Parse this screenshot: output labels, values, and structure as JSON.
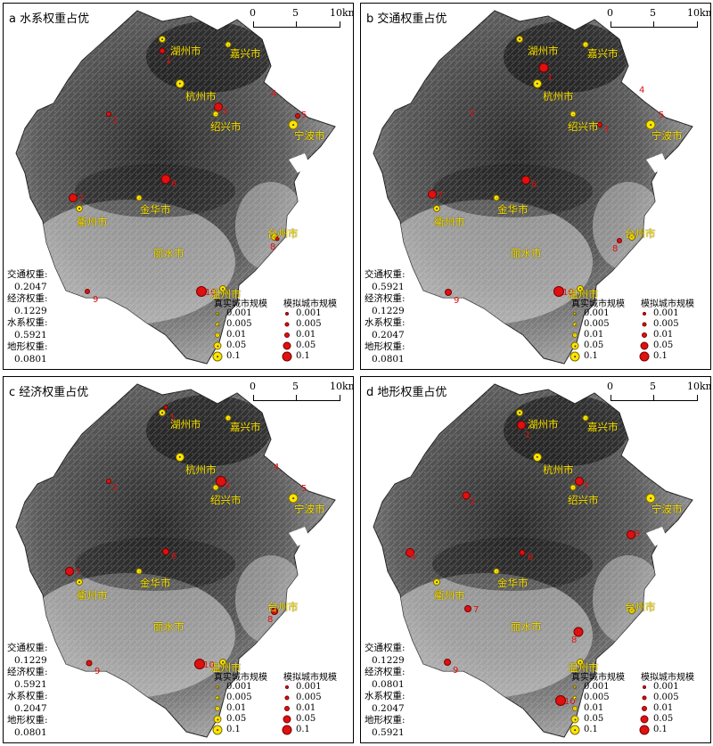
{
  "scale_bar": {
    "ticks": [
      "0",
      "5",
      "10km"
    ]
  },
  "legend": {
    "real_title": "真实城市规模",
    "sim_title": "模拟城市规模",
    "levels": [
      "0.001",
      "0.005",
      "0.01",
      "0.05",
      "0.1"
    ]
  },
  "weight_labels": {
    "traffic": "交通权重:",
    "economy": "经济权重:",
    "water": "水系权重:",
    "terrain": "地形权重:"
  },
  "panels": [
    {
      "title": "a 水系权重占优",
      "weights": {
        "traffic": "0.2047",
        "economy": "0.1229",
        "water": "0.5921",
        "terrain": "0.0801"
      },
      "cities": [
        "湖州市",
        "嘉兴市",
        "杭州市",
        "绍兴市",
        "宁波市",
        "金华市",
        "衢州市",
        "台州市",
        "丽水市",
        "温州市"
      ],
      "sim_labels": [
        "1",
        "2",
        "3",
        "4",
        "5",
        "6",
        "7",
        "8",
        "9",
        "10"
      ]
    },
    {
      "title": "b 交通权重占优",
      "weights": {
        "traffic": "0.5921",
        "economy": "0.1229",
        "water": "0.2047",
        "terrain": "0.0801"
      },
      "cities": [
        "湖州市",
        "嘉兴市",
        "杭州市",
        "绍兴市",
        "宁波市",
        "金华市",
        "衢州市",
        "台州市",
        "丽水市",
        "温州市"
      ],
      "sim_labels": [
        "1",
        "2",
        "3",
        "4",
        "5",
        "6",
        "7",
        "8",
        "9",
        "10"
      ]
    },
    {
      "title": "c 经济权重占优",
      "weights": {
        "traffic": "0.1229",
        "economy": "0.5921",
        "water": "0.2047",
        "terrain": "0.0801"
      },
      "cities": [
        "湖州市",
        "嘉兴市",
        "杭州市",
        "绍兴市",
        "宁波市",
        "金华市",
        "衢州市",
        "台州市",
        "丽水市",
        "温州市"
      ],
      "sim_labels": [
        "1",
        "2",
        "3",
        "4",
        "5",
        "6",
        "7",
        "8",
        "9",
        "10"
      ]
    },
    {
      "title": "d 地形权重占优",
      "weights": {
        "traffic": "0.1229",
        "economy": "0.0801",
        "water": "0.2047",
        "terrain": "0.5921"
      },
      "cities": [
        "湖州市",
        "嘉兴市",
        "杭州市",
        "绍兴市",
        "宁波市",
        "金华市",
        "衢州市",
        "台州市",
        "丽水市",
        "温州市"
      ],
      "sim_labels": [
        "1",
        "2",
        "3",
        "4",
        "5",
        "6",
        "7",
        "8",
        "9",
        "10"
      ]
    }
  ],
  "colors": {
    "real_city": "#ffe600",
    "sim_city": "#e01010",
    "label": "#ffe600"
  }
}
